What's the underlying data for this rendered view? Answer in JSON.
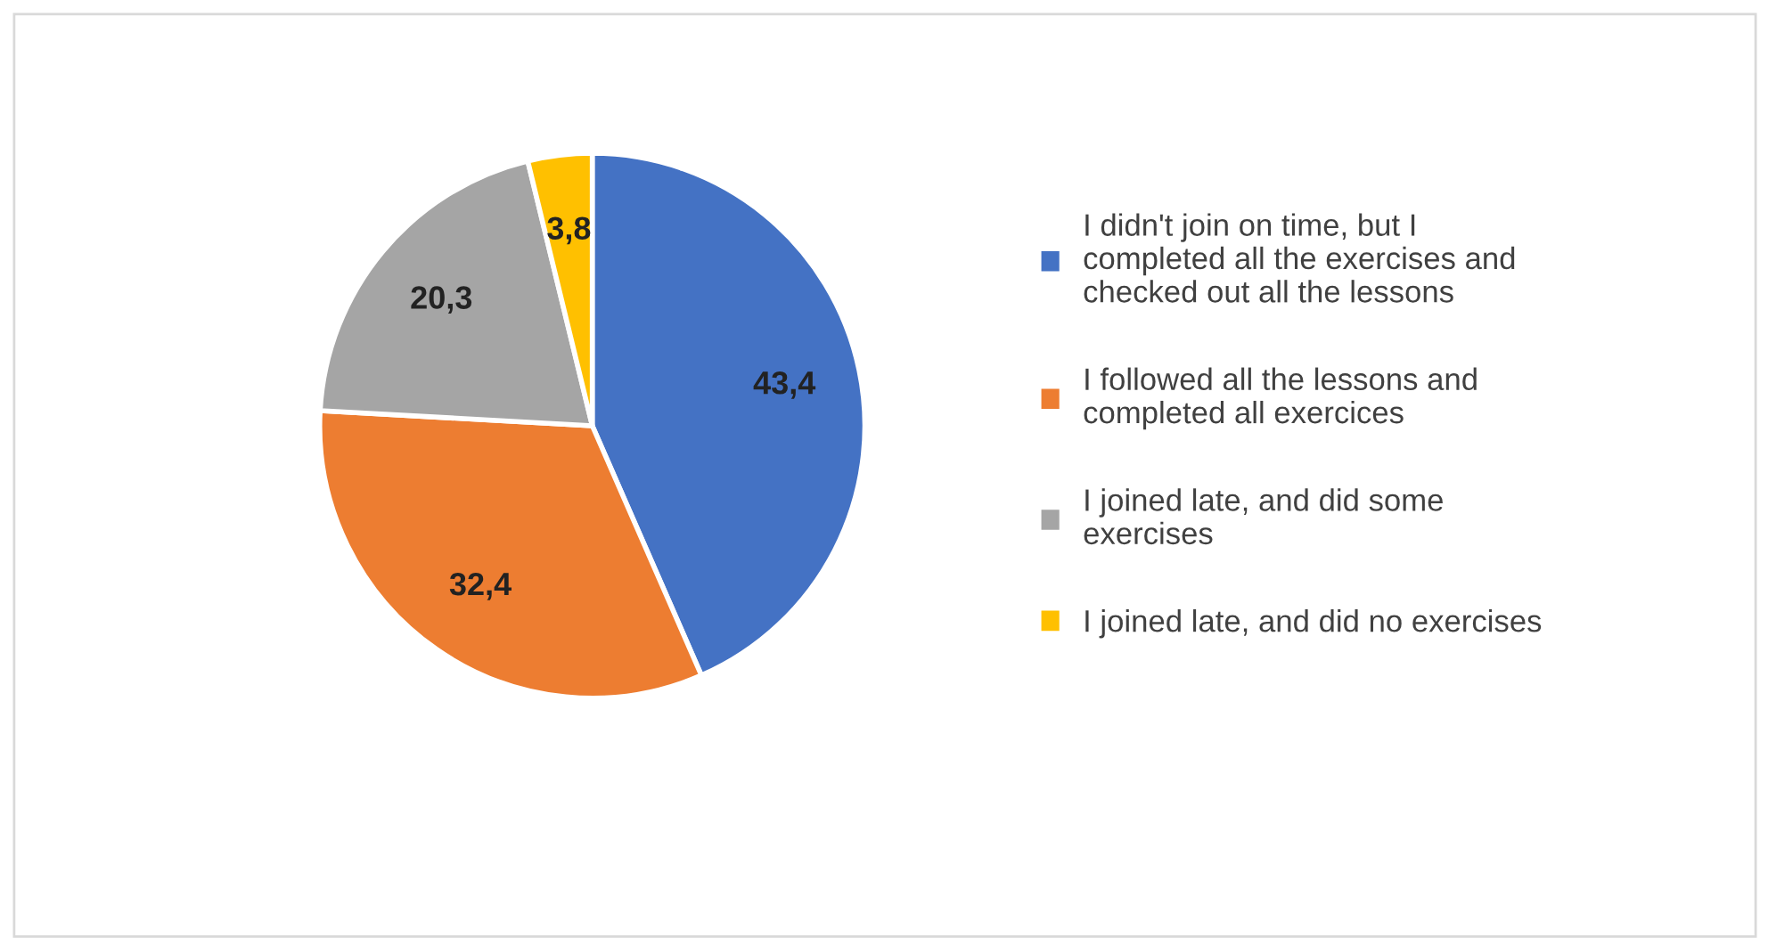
{
  "chart_data": {
    "type": "pie",
    "categories": [
      "I didn't join on time, but I\ncompleted all the exercises and\nchecked out all the lessons",
      "I followed all the lessons and\ncompleted all exercices",
      "I joined late, and did some\nexercises",
      "I joined late, and did no exercises"
    ],
    "values": [
      43.4,
      32.4,
      20.3,
      3.8
    ],
    "value_labels": [
      "43,4",
      "32,4",
      "20,3",
      "3,8"
    ],
    "colors": [
      "#4472c4",
      "#ed7d31",
      "#a5a5a5",
      "#ffc000"
    ],
    "legend": "right"
  }
}
